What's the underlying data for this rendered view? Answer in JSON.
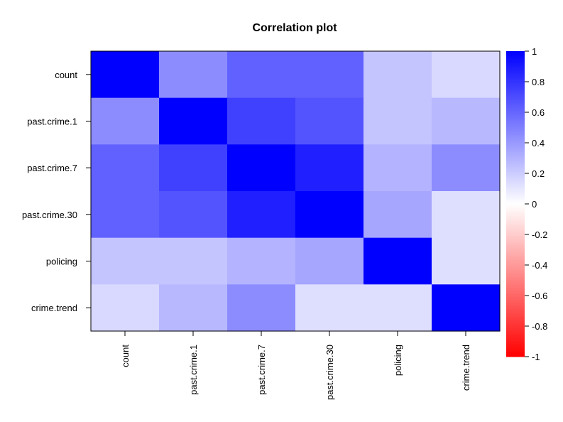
{
  "chart_data": {
    "type": "heatmap",
    "title": "Correlation plot",
    "xlabel": "",
    "ylabel": "",
    "x_categories": [
      "count",
      "past.crime.1",
      "past.crime.7",
      "past.crime.30",
      "policing",
      "crime.trend"
    ],
    "y_categories": [
      "count",
      "past.crime.1",
      "past.crime.7",
      "past.crime.30",
      "policing",
      "crime.trend"
    ],
    "values": [
      [
        1.0,
        0.45,
        0.62,
        0.62,
        0.23,
        0.15
      ],
      [
        0.45,
        1.0,
        0.75,
        0.67,
        0.23,
        0.28
      ],
      [
        0.62,
        0.75,
        1.0,
        0.88,
        0.3,
        0.45
      ],
      [
        0.62,
        0.67,
        0.88,
        1.0,
        0.35,
        0.13
      ],
      [
        0.23,
        0.23,
        0.3,
        0.35,
        1.0,
        0.13
      ],
      [
        0.15,
        0.28,
        0.45,
        0.13,
        0.13,
        1.0
      ]
    ],
    "color_scale": {
      "min": -1,
      "max": 1,
      "low_color": "#ff0000",
      "mid_color": "#ffffff",
      "high_color": "#0000ff",
      "ticks": [
        "1",
        "0.8",
        "0.6",
        "0.4",
        "0.2",
        "0",
        "-0.2",
        "-0.4",
        "-0.6",
        "-0.8",
        "-1"
      ]
    },
    "legend_position": "right"
  }
}
